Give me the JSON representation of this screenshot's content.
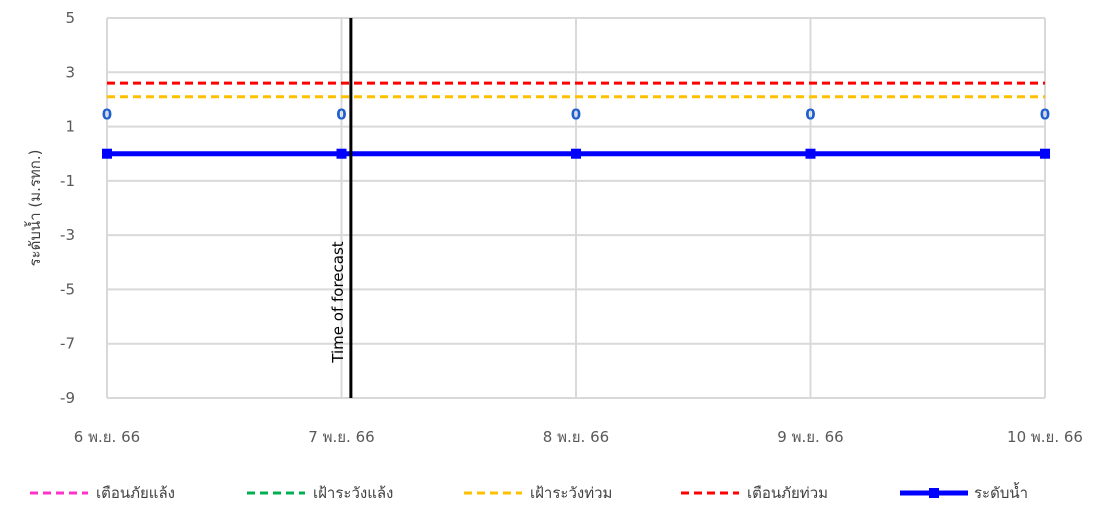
{
  "chart_data": {
    "type": "line",
    "ylabel": "ระดับน้ำ (ม.รทก.)",
    "ylim": [
      -9,
      5
    ],
    "yticks": [
      "5",
      "3",
      "1",
      "-1",
      "-3",
      "-5",
      "-7",
      "-9"
    ],
    "categories": [
      "6 พ.ย. 66",
      "7 พ.ย. 66",
      "8 พ.ย. 66",
      "9 พ.ย. 66",
      "10 พ.ย. 66"
    ],
    "grid": true,
    "legend_position": "bottom",
    "series": [
      {
        "name": "เตือนภัยแล้ง",
        "style": "dashed",
        "color": "#ff33cc",
        "values": [
          null,
          null,
          null,
          null,
          null
        ]
      },
      {
        "name": "เฝ้าระวังแล้ง",
        "style": "dashed",
        "color": "#00b050",
        "values": [
          null,
          null,
          null,
          null,
          null
        ]
      },
      {
        "name": "เฝ้าระวังท่วม",
        "style": "dashed",
        "color": "#ffc000",
        "values": [
          2.1,
          2.1,
          2.1,
          2.1,
          2.1
        ]
      },
      {
        "name": "เตือนภัยท่วม",
        "style": "dashed",
        "color": "#ff0000",
        "values": [
          2.6,
          2.6,
          2.6,
          2.6,
          2.6
        ]
      },
      {
        "name": "ระดับน้ำ",
        "style": "solid-markers",
        "color": "#0000ff",
        "values": [
          0,
          0,
          0,
          0,
          0
        ],
        "point_labels": [
          "0",
          "0",
          "0",
          "0",
          "0"
        ]
      }
    ],
    "label_color": "#1f5fd0",
    "annotation": {
      "text": "Time of forecast",
      "x_category": "7 พ.ย. 66",
      "x_offset": 0.04
    }
  }
}
